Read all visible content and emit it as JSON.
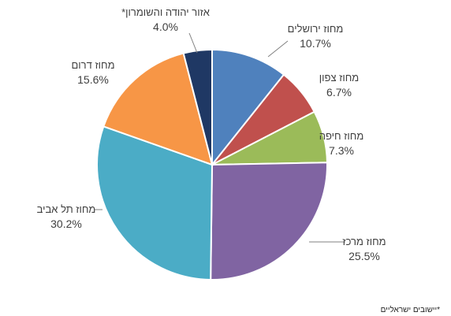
{
  "chart_data": {
    "type": "pie",
    "title": "",
    "slices": [
      {
        "name": "מחוז ירושלים",
        "value": 10.7,
        "label": "10.7%",
        "color": "#4F81BD"
      },
      {
        "name": "מחוז צפון",
        "value": 6.7,
        "label": "6.7%",
        "color": "#C0504D"
      },
      {
        "name": "מחוז חיפה",
        "value": 7.3,
        "label": "7.3%",
        "color": "#9BBB59"
      },
      {
        "name": "מחוז מרכז",
        "value": 25.5,
        "label": "25.5%",
        "color": "#8064A2"
      },
      {
        "name": "מחוז תל אביב",
        "value": 30.2,
        "label": "30.2%",
        "color": "#4BACC6"
      },
      {
        "name": "מחוז דרום",
        "value": 15.6,
        "label": "15.6%",
        "color": "#F79646"
      },
      {
        "name": "אזור יהודה והשומרון*",
        "value": 4.0,
        "label": "4.0%",
        "color": "#1F3864"
      }
    ]
  },
  "footnote": "*יישובים ישראליים"
}
